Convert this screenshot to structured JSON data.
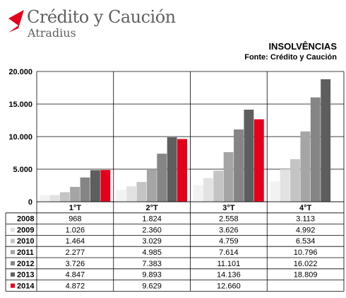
{
  "brand": {
    "name": "Crédito y Caución",
    "sub": "Atradius"
  },
  "colors": {
    "brand_red": "#e2001a",
    "logo_grey": "#5f5f5f"
  },
  "chart_data": {
    "type": "bar",
    "title": "INSOLVÊNCIAS",
    "subtitle": "Fonte: Crédito y Caución",
    "categories": [
      "1°T",
      "2°T",
      "3°T",
      "4°T"
    ],
    "ylim": [
      0,
      20000
    ],
    "yticks": [
      0,
      5000,
      10000,
      15000,
      20000
    ],
    "ytick_labels": [
      "0",
      "5.000",
      "10.000",
      "15.000",
      "20.000"
    ],
    "grid": "horizontal",
    "legend": "data-table-below",
    "series": [
      {
        "name": "2008",
        "color": "#f2f2f2",
        "values": [
          968,
          1824,
          2558,
          3113
        ],
        "labels": [
          "968",
          "1.824",
          "2.558",
          "3.113"
        ]
      },
      {
        "name": "2009",
        "color": "#e2e2e2",
        "values": [
          1026,
          2360,
          3626,
          4992
        ],
        "labels": [
          "1.026",
          "2.360",
          "3.626",
          "4.992"
        ]
      },
      {
        "name": "2010",
        "color": "#c4c4c4",
        "values": [
          1464,
          3029,
          4759,
          6534
        ],
        "labels": [
          "1.464",
          "3.029",
          "4.759",
          "6.534"
        ]
      },
      {
        "name": "2011",
        "color": "#a5a5a5",
        "values": [
          2277,
          4985,
          7614,
          10796
        ],
        "labels": [
          "2.277",
          "4.985",
          "7.614",
          "10.796"
        ]
      },
      {
        "name": "2012",
        "color": "#858585",
        "values": [
          3726,
          7383,
          11101,
          16022
        ],
        "labels": [
          "3.726",
          "7.383",
          "11.101",
          "16.022"
        ]
      },
      {
        "name": "2013",
        "color": "#5e5e5e",
        "values": [
          4847,
          9893,
          14136,
          18809
        ],
        "labels": [
          "4.847",
          "9.893",
          "14.136",
          "18.809"
        ]
      },
      {
        "name": "2014",
        "color": "#e2001a",
        "values": [
          4872,
          9629,
          12660,
          null
        ],
        "labels": [
          "4.872",
          "9.629",
          "12.660",
          ""
        ]
      }
    ]
  }
}
